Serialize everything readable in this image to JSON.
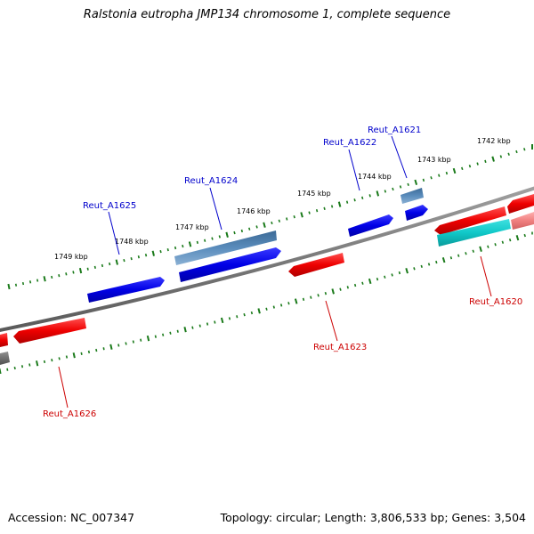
{
  "title": "Ralstonia eutropha JMP134 chromosome 1, complete sequence",
  "footer": {
    "accession": "Accession: NC_007347",
    "summary": "Topology: circular; Length: 3,806,533 bp; Genes: 3,504"
  },
  "colors": {
    "backbone": "#808080",
    "ticks": "#1a7a1a",
    "forward_gene": "#0000e6",
    "forward_label": "#0000cc",
    "reverse_gene": "#ee0000",
    "reverse_label": "#cc0000",
    "highlight_gene": "#4a7eb0",
    "cyan_gene": "#10c8c8",
    "pink_gene": "#f08080",
    "gray_gene": "#707070"
  },
  "kbp_labels": [
    "1742 kbp",
    "1743 kbp",
    "1744 kbp",
    "1745 kbp",
    "1746 kbp",
    "1747 kbp",
    "1748 kbp",
    "1749 kbp"
  ],
  "gene_labels": [
    "Reut_A1621",
    "Reut_A1622",
    "Reut_A1624",
    "Reut_A1625",
    "Reut_A1623",
    "Reut_A1620",
    "Reut_A1626"
  ]
}
